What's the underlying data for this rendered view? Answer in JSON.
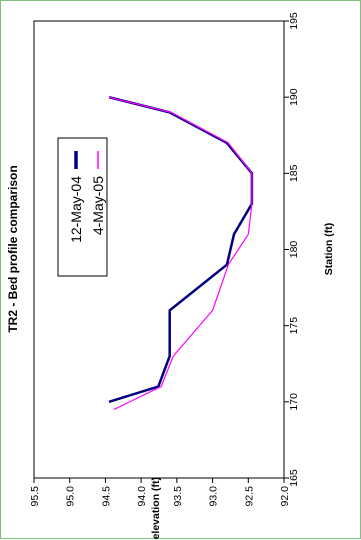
{
  "chart_data": {
    "type": "line",
    "title": "TR2 - Bed profile comparison",
    "xlabel": "Station (ft)",
    "ylabel": "bed elevation (ft)",
    "xlim": [
      165,
      195
    ],
    "ylim": [
      92.0,
      95.5
    ],
    "x_ticks": [
      "165",
      "170",
      "175",
      "180",
      "185",
      "190",
      "195"
    ],
    "y_ticks": [
      "92.0",
      "92.5",
      "93.0",
      "93.5",
      "94.0",
      "94.5",
      "95.0",
      "95.5"
    ],
    "orientation": "rotated-90-clockwise",
    "legend_position": "upper-left, inside plot",
    "grid": false,
    "series": [
      {
        "name": "12-May-04",
        "color": "#000080",
        "points": [
          [
            170,
            94.45
          ],
          [
            171,
            93.76
          ],
          [
            173,
            93.6
          ],
          [
            176,
            93.6
          ],
          [
            179,
            92.8
          ],
          [
            181,
            92.7
          ],
          [
            183,
            92.45
          ],
          [
            185,
            92.45
          ],
          [
            187,
            92.8
          ],
          [
            189,
            93.6
          ],
          [
            190,
            94.45
          ]
        ]
      },
      {
        "name": "4-May-05",
        "color": "#ff00ff",
        "points": [
          [
            169.5,
            94.38
          ],
          [
            171,
            93.72
          ],
          [
            173,
            93.55
          ],
          [
            176,
            93.0
          ],
          [
            179,
            92.78
          ],
          [
            181,
            92.5
          ],
          [
            183,
            92.45
          ],
          [
            185,
            92.45
          ],
          [
            187,
            92.78
          ],
          [
            189,
            93.58
          ],
          [
            190,
            94.45
          ]
        ]
      }
    ]
  }
}
